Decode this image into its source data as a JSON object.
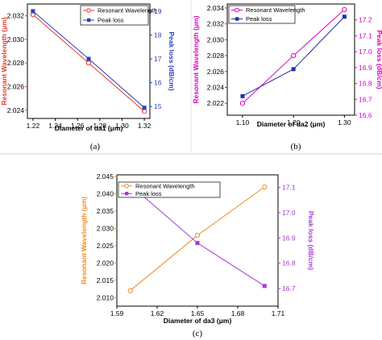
{
  "chart_data": [
    {
      "type": "line",
      "caption": "(a)",
      "xlabel": "Diameter of da1 (μm)",
      "ylabel_left": "Resonant Wavelength (μm)",
      "ylabel_right": "Peak loss (dB/cm)",
      "xlim": [
        1.215,
        1.325
      ],
      "ylim_left": [
        2.0233,
        2.033
      ],
      "ylim_right": [
        14.5,
        19.3
      ],
      "xticks": [
        "1.22",
        "1.24",
        "1.26",
        "1.28",
        "1.30",
        "1.32"
      ],
      "yticks_left": [
        "2.024",
        "2.026",
        "2.028",
        "2.030",
        "2.032"
      ],
      "yticks_right": [
        "15",
        "16",
        "17",
        "18",
        "19"
      ],
      "x": [
        1.22,
        1.27,
        1.32
      ],
      "series": [
        {
          "name": "Resonant Wavelength",
          "axis": "left",
          "values": [
            2.0321,
            2.028,
            2.0239
          ],
          "color": "#e8392f",
          "marker": "circle"
        },
        {
          "name": "Peak loss",
          "axis": "right",
          "values": [
            19.0,
            17.0,
            14.95
          ],
          "color": "#2a3fbf",
          "marker": "square"
        }
      ],
      "legend": "top-right",
      "left_color": "#e8392f",
      "right_color": "#2a3fbf"
    },
    {
      "type": "line",
      "caption": "(b)",
      "xlabel": "Diameter of da2 (μm)",
      "ylabel_left": "Resonant Wavelength (μm)",
      "ylabel_right": "Peak loss (dB/cm)",
      "xlim": [
        1.07,
        1.32
      ],
      "ylim_left": [
        2.0205,
        2.0345
      ],
      "ylim_right": [
        16.6,
        17.3
      ],
      "xticks": [
        "1.10",
        "1.20",
        "1.30"
      ],
      "yticks_left": [
        "2.022",
        "2.024",
        "2.026",
        "2.028",
        "2.030",
        "2.032",
        "2.034"
      ],
      "yticks_right": [
        "16.6",
        "16.7",
        "16.8",
        "16.9",
        "17.0",
        "17.1",
        "17.2"
      ],
      "x": [
        1.1,
        1.2,
        1.3
      ],
      "series": [
        {
          "name": "Resonant Wavelength",
          "axis": "left",
          "values": [
            2.022,
            2.028,
            2.0338
          ],
          "color": "#d400c8",
          "marker": "circle"
        },
        {
          "name": "Peak loss",
          "axis": "right",
          "values": [
            16.72,
            16.89,
            17.22
          ],
          "color": "#1f2fa8",
          "marker": "square"
        }
      ],
      "legend": "top-left",
      "left_color": "#d400c8",
      "right_color": "#d400c8"
    },
    {
      "type": "line",
      "caption": "(c)",
      "xlabel": "Diameter of da3 (μm)",
      "ylabel_left": "Resonant Wavelength (μm)",
      "ylabel_right": "Peak loss (dB/cm)",
      "xlim": [
        1.59,
        1.71
      ],
      "ylim_left": [
        2.0075,
        2.0455
      ],
      "ylim_right": [
        16.63,
        17.15
      ],
      "xticks": [
        "1.59",
        "1.62",
        "1.65",
        "1.68",
        "1.71"
      ],
      "yticks_left": [
        "2.010",
        "2.015",
        "2.020",
        "2.025",
        "2.030",
        "2.035",
        "2.040",
        "2.045"
      ],
      "yticks_right": [
        "16.7",
        "16.8",
        "16.9",
        "17.0",
        "17.1"
      ],
      "x": [
        1.6,
        1.65,
        1.7
      ],
      "series": [
        {
          "name": "Resonant Wavelength",
          "axis": "left",
          "values": [
            2.012,
            2.028,
            2.042
          ],
          "color": "#f08a24",
          "marker": "circle"
        },
        {
          "name": "Peak loss",
          "axis": "right",
          "values": [
            17.11,
            16.88,
            16.71
          ],
          "color": "#a63bd1",
          "marker": "square"
        }
      ],
      "legend": "top-left",
      "left_color": "#f08a24",
      "right_color": "#a63bd1"
    }
  ]
}
